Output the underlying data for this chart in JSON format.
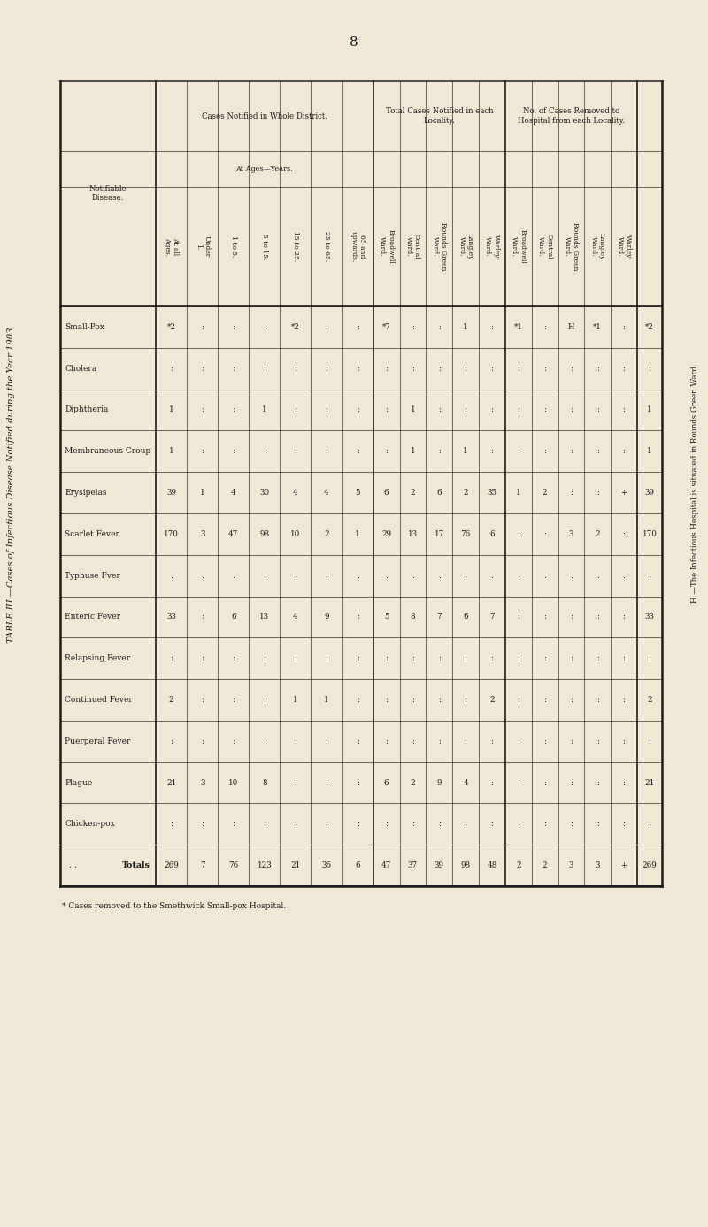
{
  "title": "TABLE III.—Cases of Infectious Disease Notified during the Year 1903.",
  "page_num": "8",
  "bg_color": "#f0e8d5",
  "diseases": [
    "Small-Pox",
    "Cholera",
    "Diphtheria",
    "Membraneous Croup",
    "Erysipelas",
    "Scarlet Fever",
    "Typhuse Fver",
    "Enteric Fever",
    "Relapsing Fever",
    "Continued Fever",
    "Puerperal Fever",
    "Plague",
    "Chicken-pox",
    "Totals"
  ],
  "col_keys": [
    "at_all_ages",
    "under_1",
    "1_to_5",
    "5_to_15",
    "15_to_25",
    "25_to_65",
    "65_up",
    "bw_total",
    "cen_total",
    "rg_total",
    "lang_total",
    "war_total",
    "bw_rem",
    "cen_rem",
    "rg_rem",
    "lang_rem",
    "war_rem"
  ],
  "table_data": {
    "at_all_ages": [
      "*2",
      ":",
      "1",
      "1",
      "39",
      "170",
      ":",
      "33",
      ":",
      "2",
      ":",
      "21",
      ":",
      "269"
    ],
    "under_1": [
      ":",
      ":",
      ":",
      ":",
      "1",
      "3",
      ":",
      ":",
      ":",
      ":",
      ":",
      "3",
      ":",
      "7"
    ],
    "1_to_5": [
      ":",
      ":",
      ":",
      ":",
      "4",
      "47",
      ":",
      "6",
      ":",
      ":",
      ":",
      "10",
      ":",
      "76"
    ],
    "5_to_15": [
      ":",
      ":",
      "1",
      ":",
      "30",
      "98",
      ":",
      "13",
      ":",
      ":",
      ":",
      "8",
      ":",
      "123"
    ],
    "15_to_25": [
      "*2",
      ":",
      ":",
      ":",
      "4",
      "10",
      ":",
      "4",
      ":",
      "1",
      ":",
      ":",
      ":",
      "21"
    ],
    "25_to_65": [
      ":",
      ":",
      ":",
      ":",
      "4",
      "2",
      ":",
      "9",
      ":",
      "1",
      ":",
      ":",
      ":",
      "36"
    ],
    "65_up": [
      ":",
      ":",
      ":",
      ":",
      "5",
      "1",
      ":",
      ":",
      ":",
      ":",
      ":",
      ":",
      ":",
      "6"
    ],
    "bw_total": [
      "*7",
      ":",
      ":",
      ":",
      "6",
      "29",
      ":",
      "5",
      ":",
      ":",
      ":",
      "6",
      ":",
      "47"
    ],
    "cen_total": [
      ":",
      ":",
      "1",
      "1",
      "2",
      "13",
      ":",
      "8",
      ":",
      ":",
      ":",
      "2",
      ":",
      "37"
    ],
    "rg_total": [
      ":",
      ":",
      ":",
      ":",
      "6",
      "17",
      ":",
      "7",
      ":",
      ":",
      ":",
      "9",
      ":",
      "39"
    ],
    "lang_total": [
      "1",
      ":",
      ":",
      "1",
      "2",
      "76",
      ":",
      "6",
      ":",
      ":",
      ":",
      "4",
      ":",
      "98"
    ],
    "war_total": [
      ":",
      ":",
      ":",
      ":",
      "35",
      "6",
      ":",
      "7",
      ":",
      "2",
      ":",
      ":",
      ":",
      "48"
    ],
    "bw_rem": [
      "*1",
      ":",
      ":",
      ":",
      "1",
      ":",
      ":",
      ":",
      ":",
      ":",
      ":",
      ":",
      ":",
      "2"
    ],
    "cen_rem": [
      ":",
      ":",
      ":",
      ":",
      "2",
      ":",
      ":",
      ":",
      ":",
      ":",
      ":",
      ":",
      ":",
      "2"
    ],
    "rg_rem": [
      "H",
      ":",
      ":",
      ":",
      ":",
      "3",
      ":",
      ":",
      ":",
      ":",
      ":",
      ":",
      ":",
      "3"
    ],
    "lang_rem": [
      "*1",
      ":",
      ":",
      ":",
      ":",
      "2",
      ":",
      ":",
      ":",
      ":",
      ":",
      ":",
      ":",
      "3"
    ],
    "war_rem": [
      ":",
      ":",
      ":",
      ":",
      "+",
      ":",
      ":",
      ":",
      ":",
      ":",
      ":",
      ":",
      ":",
      "+"
    ]
  },
  "footnote1": "* Cases removed to the Smethwick Small-pox Hospital.",
  "footnote2": "H.—The Infectious Hospital is situated in Rounds Green Ward.",
  "age_col_labels": [
    "At all\nAges.",
    "Under\n1.",
    "1 to 5.",
    "5 to 15.",
    "15 to 25.",
    "25 to 65.",
    "65 and\nupwards."
  ],
  "loc_col_labels": [
    "Broadwell\nWard.",
    "Central\nWard.",
    "Rounds Green\nWard.",
    "Langley\nWard.",
    "Warley\nWard."
  ]
}
